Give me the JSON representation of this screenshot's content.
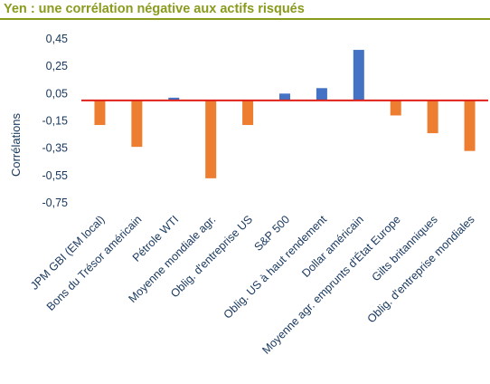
{
  "chart_data": {
    "type": "bar",
    "title": "Yen : une corrélation négative aux actifs risqués",
    "ylabel": "Corrélations",
    "xlabel": "",
    "ylim": [
      -0.75,
      0.45
    ],
    "yticks": [
      "0,45",
      "0,25",
      "0,05",
      "-0,15",
      "-0,35",
      "-0,55",
      "-0,75"
    ],
    "ytick_values": [
      0.45,
      0.25,
      0.05,
      -0.15,
      -0.35,
      -0.55,
      -0.75
    ],
    "zero_line_color": "#e0211a",
    "colors": {
      "positive": "#4472c4",
      "negative": "#ed7d31"
    },
    "grid": false,
    "legend": "none",
    "categories": [
      "JPM GBI (EM local)",
      "Bons du Trésor américain",
      "Pétrole WTI",
      "Moyenne mondiale agr.",
      "Oblig. d'entreprise US",
      "S&P 500",
      "Oblig. US à haut rendement",
      "Dollar américain",
      "Moyenne agr. emprunts d'État Europe",
      "Gilts britanniques",
      "Oblig. d'entreprise mondiales"
    ],
    "values": [
      -0.18,
      -0.34,
      0.02,
      -0.57,
      -0.18,
      0.05,
      0.09,
      0.37,
      -0.11,
      -0.24,
      -0.37
    ]
  }
}
